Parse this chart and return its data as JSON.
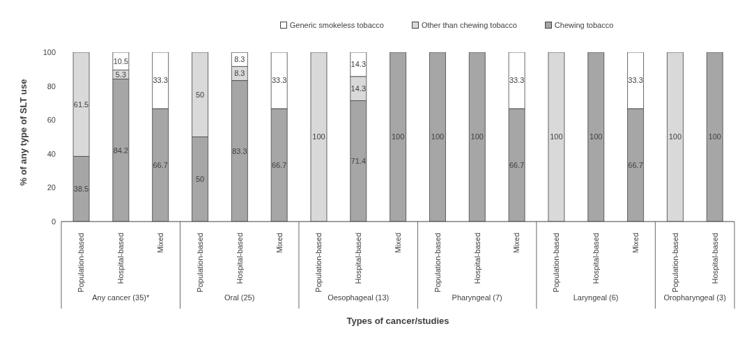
{
  "chart_data": {
    "type": "bar",
    "stacked": true,
    "xlabel": "Types of cancer/studies",
    "ylabel": "% of any type of SLT use",
    "categories": [
      "Population-based",
      "Hospital-based",
      "Mixed",
      "Population-based",
      "Hospital-based",
      "Mixed",
      "Population-based",
      "Hospital-based",
      "Mixed",
      "Population-based",
      "Hospital-based",
      "Mixed",
      "Population-based",
      "Hospital-based",
      "Mixed",
      "Population-based",
      "Hospital-based"
    ],
    "series": [
      {
        "name": "Chewing tobacco",
        "color": "#a6a6a6",
        "values": [
          38.5,
          84.2,
          66.7,
          50,
          83.3,
          66.7,
          null,
          71.4,
          100,
          100,
          100,
          66.7,
          null,
          100,
          66.7,
          null,
          100
        ]
      },
      {
        "name": "Other than chewing tobacco",
        "color": "#d9d9d9",
        "values": [
          61.5,
          5.3,
          null,
          50,
          8.3,
          null,
          100,
          14.3,
          null,
          null,
          null,
          null,
          100,
          null,
          null,
          100,
          null
        ]
      },
      {
        "name": "Generic smokeless tobacco",
        "color": "#ffffff",
        "values": [
          null,
          10.5,
          33.3,
          null,
          8.3,
          33.3,
          null,
          14.3,
          null,
          null,
          null,
          33.3,
          null,
          null,
          33.3,
          null,
          null
        ]
      }
    ],
    "ylim": [
      0,
      100
    ],
    "yticks": [
      0,
      20,
      40,
      60,
      80,
      100
    ],
    "data_labels": true,
    "legend": "top",
    "annotations": [
      "Any cancer (35)*",
      "Oral (25)",
      "Oesophageal (13)",
      "Pharyngeal (7)",
      "Laryngeal (6)",
      "Oropharyngeal (3)"
    ]
  }
}
